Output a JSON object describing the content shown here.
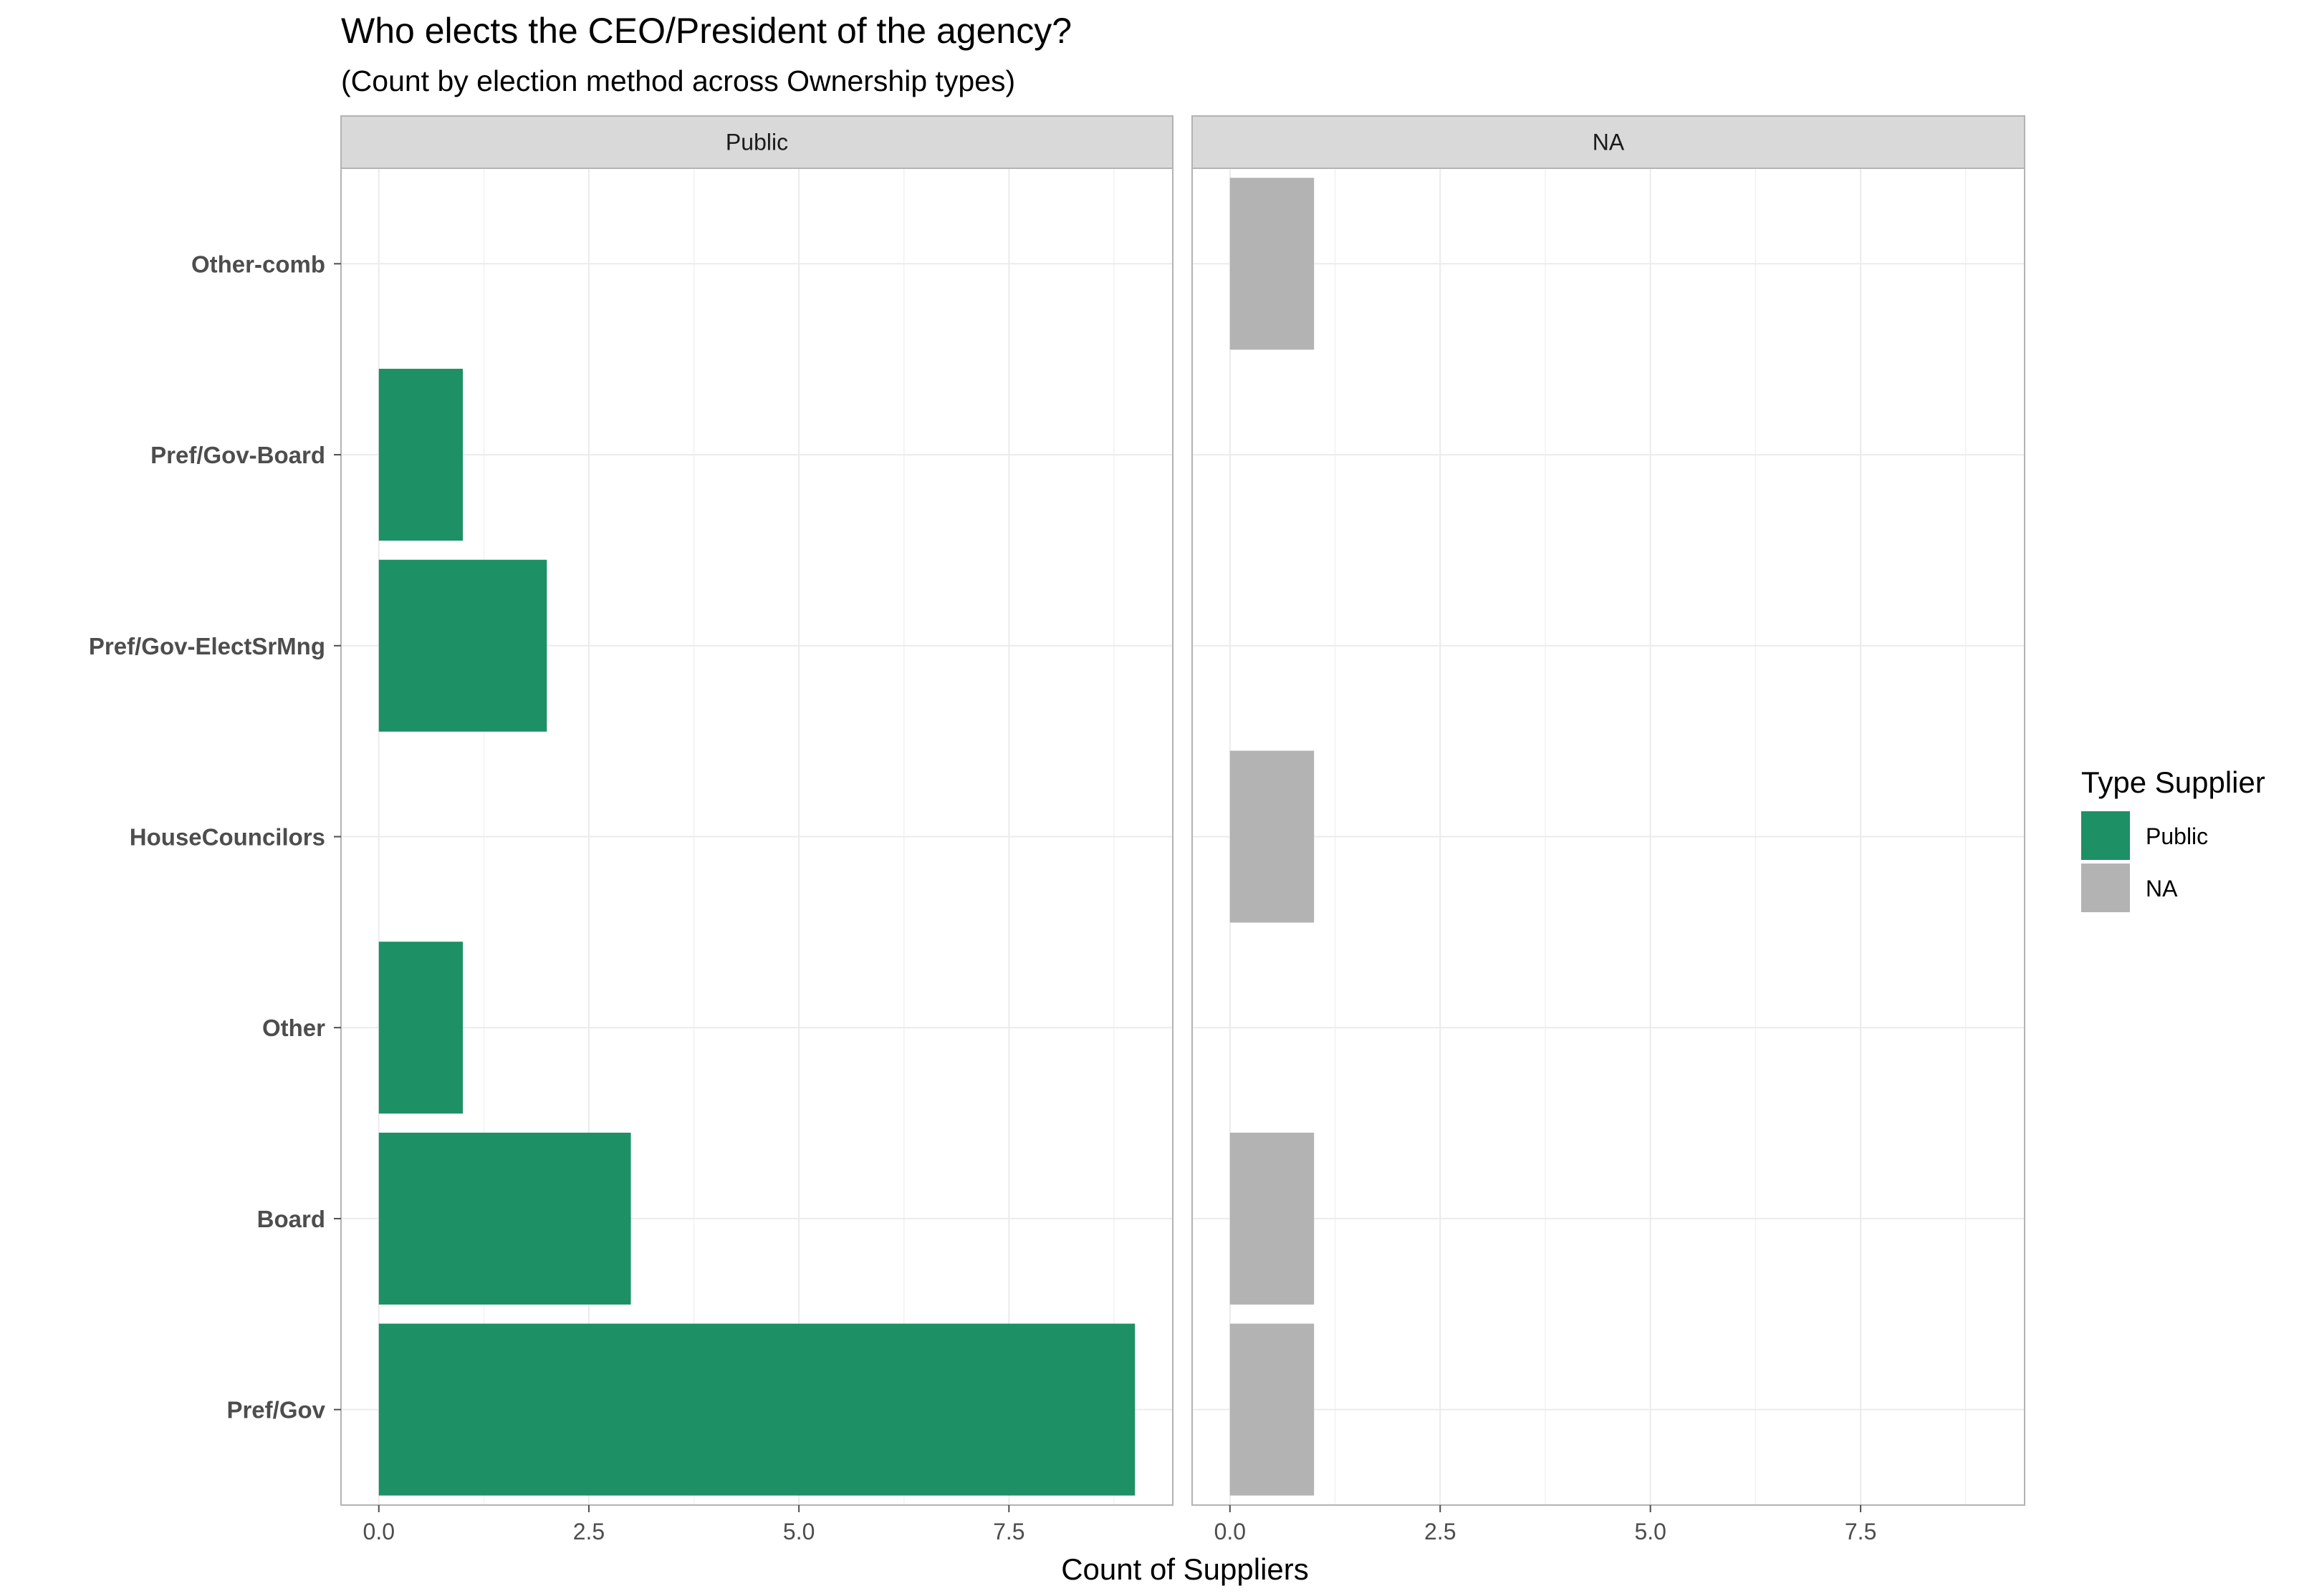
{
  "chart_data": {
    "type": "bar",
    "orientation": "horizontal",
    "title": "Who elects the CEO/President of the agency?",
    "subtitle": "(Count by election method across Ownership types)",
    "xlabel": "Count of Suppliers",
    "ylabel": "",
    "xlim": [
      -0.45,
      9.45
    ],
    "x_ticks": [
      0,
      2.5,
      5,
      7.5
    ],
    "x_tick_labels": [
      "0.0",
      "2.5",
      "5.0",
      "7.5"
    ],
    "categories": [
      "Other-comb",
      "Pref/Gov-Board",
      "Pref/Gov-ElectSrMng",
      "HouseCouncilors",
      "Other",
      "Board",
      "Pref/Gov"
    ],
    "facets": [
      {
        "name": "Public",
        "color": "#1D9065",
        "values": [
          0,
          1,
          2,
          0,
          1,
          3,
          9
        ]
      },
      {
        "name": "NA",
        "color": "#B3B3B3",
        "values": [
          1,
          0,
          0,
          1,
          0,
          1,
          1
        ]
      }
    ],
    "legend": {
      "title": "Type Supplier",
      "position": "right",
      "items": [
        {
          "label": "Public",
          "color": "#1D9065"
        },
        {
          "label": "NA",
          "color": "#B3B3B3"
        }
      ]
    },
    "grid": true
  }
}
